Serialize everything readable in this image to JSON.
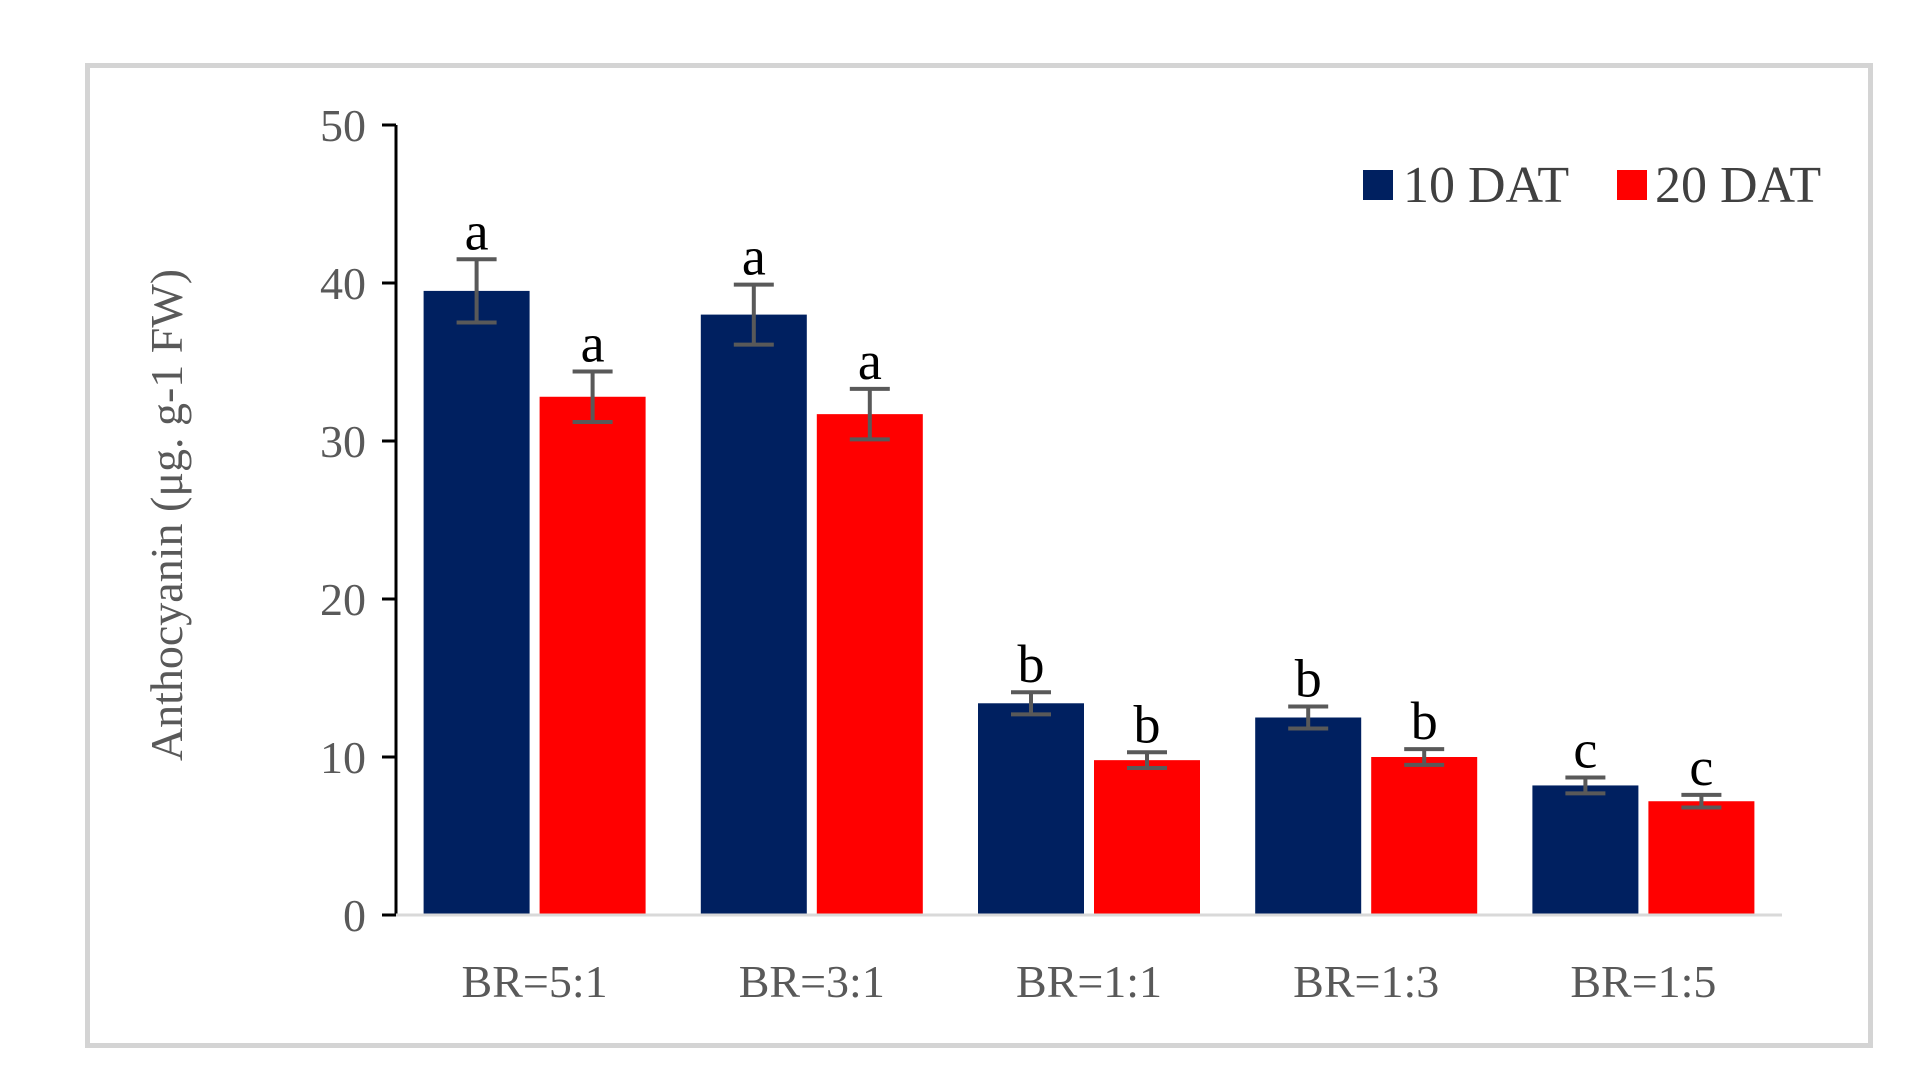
{
  "chart_data": {
    "type": "bar",
    "title": "",
    "xlabel": "",
    "ylabel": "Anthocyanin (μg. g-1 FW)",
    "ylim": [
      0,
      50
    ],
    "yticks": [
      0,
      10,
      20,
      30,
      40,
      50
    ],
    "grid": false,
    "legend_position": "top-right",
    "categories": [
      "BR=5:1",
      "BR=3:1",
      "BR=1:1",
      "BR=1:3",
      "BR=1:5"
    ],
    "series": [
      {
        "name": "10 DAT",
        "color": "#002060",
        "values": [
          39.5,
          38.0,
          13.4,
          12.5,
          8.2
        ],
        "errors": [
          2.0,
          1.9,
          0.7,
          0.7,
          0.5
        ],
        "labels": [
          "a",
          "a",
          "b",
          "b",
          "c"
        ]
      },
      {
        "name": "20 DAT",
        "color": "#ff0000",
        "values": [
          32.8,
          31.7,
          9.8,
          10.0,
          7.2
        ],
        "errors": [
          1.6,
          1.6,
          0.5,
          0.5,
          0.4
        ],
        "labels": [
          "a",
          "a",
          "b",
          "b",
          "c"
        ]
      }
    ],
    "error_bar_color": "#595959",
    "axis_color": "#000000",
    "tick_label_color": "#595959"
  }
}
